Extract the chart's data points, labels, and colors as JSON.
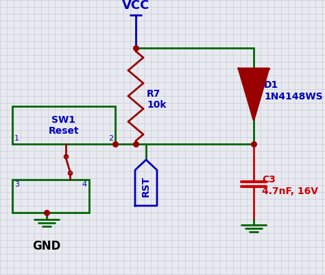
{
  "bg_color": "#e8eaf0",
  "grid_color": "#c0c4d0",
  "green": "#006600",
  "red": "#cc0000",
  "blue": "#0000bb",
  "dark_red": "#990000",
  "vcc_label": "VCC",
  "gnd_label": "GND",
  "r7_label": "R7\n10k",
  "d1_label": "D1\n1N4148WS",
  "c3_label": "C3\n4.7nF, 16V",
  "sw1_label": "SW1\nReset",
  "rst_label": "RST",
  "pin1_label": "1",
  "pin2_label": "2",
  "pin3_label": "3",
  "pin4_label": "4"
}
